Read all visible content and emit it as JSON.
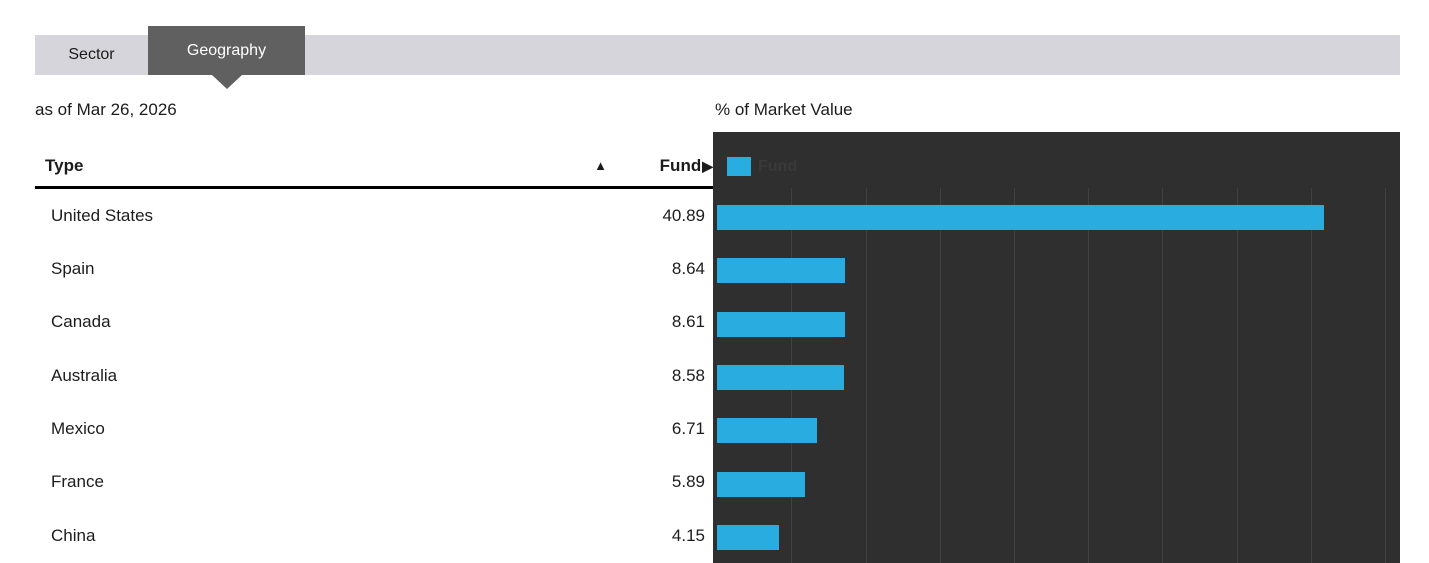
{
  "tabs": [
    {
      "label": "Sector",
      "active": false
    },
    {
      "label": "Geography",
      "active": true
    }
  ],
  "as_of_date": "as of Mar 26, 2026",
  "table": {
    "columns": [
      {
        "label": "Type",
        "sort_icon": "▲"
      },
      {
        "label": "Fund",
        "arrow_icon": "▶"
      }
    ],
    "rows": [
      {
        "type": "United States",
        "fund": "40.89"
      },
      {
        "type": "Spain",
        "fund": "8.64"
      },
      {
        "type": "Canada",
        "fund": "8.61"
      },
      {
        "type": "Australia",
        "fund": "8.58"
      },
      {
        "type": "Mexico",
        "fund": "6.71"
      },
      {
        "type": "France",
        "fund": "5.89"
      },
      {
        "type": "China",
        "fund": "4.15"
      }
    ]
  },
  "chart_data": {
    "type": "bar",
    "orientation": "horizontal",
    "title": "% of Market Value",
    "legend": [
      {
        "name": "Fund",
        "color": "#29ace0"
      }
    ],
    "legend_position": "top-left",
    "categories": [
      "United States",
      "Spain",
      "Canada",
      "Australia",
      "Mexico",
      "France",
      "China"
    ],
    "series": [
      {
        "name": "Fund",
        "values": [
          40.89,
          8.64,
          8.61,
          8.58,
          6.71,
          5.89,
          4.15
        ]
      }
    ],
    "xlim": [
      0,
      46
    ],
    "gridline_interval": 5,
    "grid": true,
    "plot_background": "#302f30",
    "gridline_color": "#413f40"
  },
  "colors": {
    "bar_accent": "#29ace0",
    "tab_bar_bg": "#d6d5dc",
    "active_tab_bg": "#616061",
    "chart_bg": "#302f30",
    "gridline": "#413f40",
    "legend_text": "#3a3939",
    "text": "#1b1b1b"
  }
}
